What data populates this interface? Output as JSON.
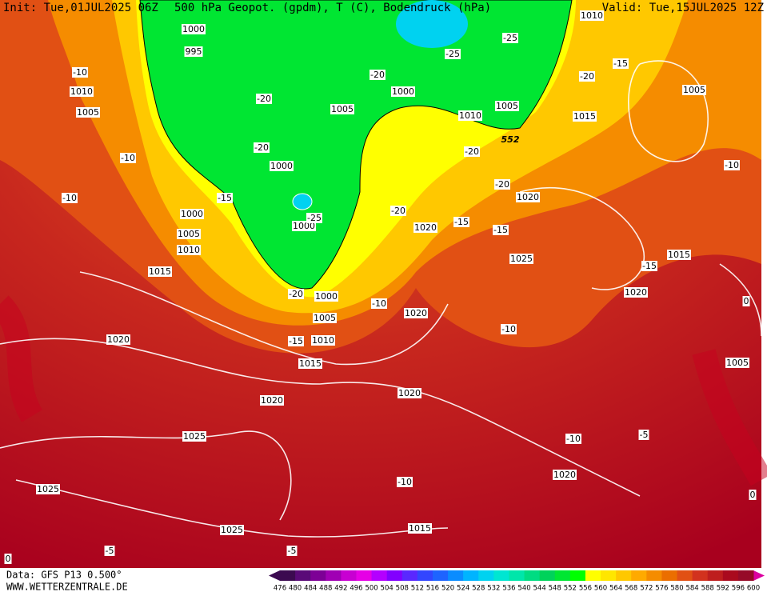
{
  "header": {
    "init": "Init: Tue,01JUL2025 06Z",
    "title": "500 hPa Geopot. (gpdm), T (C), Bodendruck (hPa)",
    "valid": "Valid: Tue,15JUL2025 12Z"
  },
  "footer": {
    "data": "Data: GFS P13 0.500°",
    "site": "WWW.WETTERZENTRALE.DE"
  },
  "pressure_labels": [
    "1000",
    "995",
    "1010",
    "1005",
    "1005",
    "1000",
    "1005",
    "1010",
    "1015",
    "1005",
    "1000",
    "1000",
    "1005",
    "1010",
    "1000",
    "1015",
    "1020",
    "1020",
    "1025",
    "1015",
    "1020",
    "1000",
    "1005",
    "1010",
    "1020",
    "1015",
    "1020",
    "1020",
    "1020",
    "1025",
    "1025",
    "1020",
    "1015",
    "1025",
    "1005",
    "1010"
  ],
  "temperature_labels": [
    "-10",
    "-10",
    "-10",
    "-20",
    "-20",
    "-15",
    "-25",
    "-20",
    "-25",
    "-25",
    "-15",
    "-20",
    "-20",
    "-20",
    "-20",
    "-15",
    "-15",
    "-10",
    "-15",
    "-10",
    "-10",
    "-20",
    "-15",
    "-10",
    "-5",
    "-10",
    "-5",
    "-5",
    "0",
    "0",
    "0"
  ],
  "geopotential_label": "552",
  "colorbar": {
    "ticks": [
      476,
      480,
      484,
      488,
      492,
      496,
      500,
      504,
      508,
      512,
      516,
      520,
      524,
      528,
      532,
      536,
      540,
      544,
      548,
      552,
      556,
      560,
      564,
      568,
      572,
      576,
      580,
      584,
      588,
      592,
      596,
      600
    ],
    "colors": [
      "#3c0a50",
      "#5a0a78",
      "#7d0096",
      "#a000b4",
      "#c800d2",
      "#e600e6",
      "#b400ff",
      "#8200ff",
      "#5a28ff",
      "#3246ff",
      "#1e64ff",
      "#0a8cff",
      "#00b4ff",
      "#00d2f0",
      "#00e6d2",
      "#00e6aa",
      "#00dc82",
      "#00d25a",
      "#00e632",
      "#00ff00",
      "#ffff00",
      "#ffe600",
      "#ffc800",
      "#ffaa00",
      "#f58c00",
      "#eb6e00",
      "#e15014",
      "#d2321e",
      "#be1e1e",
      "#aa0a1e",
      "#960a28"
    ]
  }
}
